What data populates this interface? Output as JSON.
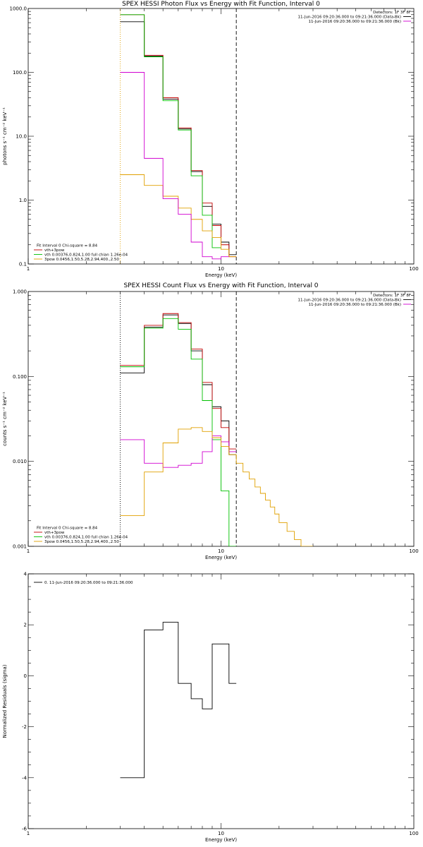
{
  "chart_data": [
    {
      "type": "line",
      "title": "SPEX HESSI Photon Flux vs Energy with Fit Function, Interval 0",
      "xlabel": "Energy (keV)",
      "ylabel": "photons s⁻¹ cm⁻² keV⁻¹",
      "xlim": [
        1,
        100
      ],
      "ylim": [
        0.1,
        1000
      ],
      "xscale": "log",
      "yscale": "log",
      "xticks": [
        {
          "v": 1,
          "label": "1"
        },
        {
          "v": 10,
          "label": "10"
        },
        {
          "v": 100,
          "label": "100"
        }
      ],
      "yticks": [
        {
          "v": 0.1,
          "label": "0.1"
        },
        {
          "v": 1,
          "label": "1.0"
        },
        {
          "v": 10,
          "label": "10.0"
        },
        {
          "v": 100,
          "label": "100.0"
        },
        {
          "v": 1000,
          "label": "1000.0"
        }
      ],
      "vlines": [
        {
          "x": 3,
          "style": "dotted",
          "color": "#e0a000"
        },
        {
          "x": 12,
          "style": "dashed",
          "color": "#000000"
        }
      ],
      "header": [
        {
          "text": "Detectors: 1F 3F 8F",
          "color": "#000000",
          "line": false
        },
        {
          "text": "11-Jun-2016 09:20:36.000 to 09:21:36.000 (Data-Bk)",
          "color": "#000000",
          "line": true
        },
        {
          "text": "11-Jun-2016 09:20:36.000 to 09:21:36.000 (Bk)",
          "color": "#d000d0",
          "line": true
        }
      ],
      "legend_position": "bottom-left",
      "legend": [
        {
          "text": "Fit Interval 0   Chi-square = 8.84",
          "color": "#000000",
          "line": false
        },
        {
          "text": "vth+3pow",
          "color": "#c00000",
          "line": true
        },
        {
          "text": "vth 0.00376,0.824,1.00  full chian 1.26e-04",
          "color": "#00c000",
          "line": true
        },
        {
          "text": "3pow 0.0456,1.50,5.28,2.94,400.,2.50",
          "color": "#e0a000",
          "line": true
        }
      ],
      "bin_edges": [
        3,
        4,
        5,
        6,
        7,
        8,
        9,
        10,
        11,
        12
      ],
      "series": [
        {
          "name": "Data-Bk",
          "color": "#000000",
          "values": [
            620,
            180,
            38,
            13,
            2.8,
            0.8,
            0.42,
            0.22,
            0.14
          ]
        },
        {
          "name": "vth+3pow",
          "color": "#c00000",
          "values": [
            800,
            185,
            40,
            13.5,
            2.9,
            0.9,
            0.4,
            0.2,
            0.13
          ]
        },
        {
          "name": "vth",
          "color": "#00c000",
          "values": [
            800,
            175,
            36,
            12.5,
            2.4,
            0.58,
            0.18
          ]
        },
        {
          "name": "3pow",
          "color": "#e0a000",
          "values": [
            2.5,
            1.7,
            1.15,
            0.75,
            0.5,
            0.33,
            0.26,
            0.17,
            0.13
          ]
        },
        {
          "name": "Bk",
          "color": "#d000d0",
          "values": [
            100,
            4.5,
            1.05,
            0.6,
            0.22,
            0.13,
            0.12,
            0.13
          ]
        }
      ]
    },
    {
      "type": "line",
      "title": "SPEX HESSI Count Flux vs Energy with Fit Function, Interval 0",
      "xlabel": "Energy (keV)",
      "ylabel": "counts s⁻¹ cm⁻² keV⁻¹",
      "xlim": [
        1,
        100
      ],
      "ylim": [
        0.001,
        1
      ],
      "xscale": "log",
      "yscale": "log",
      "xticks": [
        {
          "v": 1,
          "label": "1"
        },
        {
          "v": 10,
          "label": "10"
        },
        {
          "v": 100,
          "label": "100"
        }
      ],
      "yticks": [
        {
          "v": 0.001,
          "label": "0.001"
        },
        {
          "v": 0.01,
          "label": "0.010"
        },
        {
          "v": 0.1,
          "label": "0.100"
        },
        {
          "v": 1,
          "label": "1.000"
        }
      ],
      "vlines": [
        {
          "x": 3,
          "style": "dotted",
          "color": "#000000"
        },
        {
          "x": 12,
          "style": "dashed",
          "color": "#000000"
        }
      ],
      "header": [
        {
          "text": "Detectors: 1F 3F 8F",
          "color": "#000000",
          "line": false
        },
        {
          "text": "11-Jun-2016 09:20:36.000 to 09:21:36.000 (Data-Bk)",
          "color": "#000000",
          "line": true
        },
        {
          "text": "11-Jun-2016 09:20:36.000 to 09:21:36.000 (Bk)",
          "color": "#d000d0",
          "line": true
        }
      ],
      "legend_position": "bottom-left",
      "legend": [
        {
          "text": "Fit Interval 0   Chi-square = 8.84",
          "color": "#000000",
          "line": false
        },
        {
          "text": "vth+3pow",
          "color": "#c00000",
          "line": true
        },
        {
          "text": "vth 0.00376,0.824,1.00  full chian 1.26e-04",
          "color": "#00c000",
          "line": true
        },
        {
          "text": "3pow 0.0456,1.50,5.28,2.94,400.,2.50",
          "color": "#e0a000",
          "line": true
        }
      ],
      "bin_edges": [
        3,
        4,
        5,
        6,
        7,
        8,
        9,
        10,
        11,
        12
      ],
      "series": [
        {
          "name": "Data-Bk",
          "color": "#000000",
          "values": [
            0.11,
            0.38,
            0.53,
            0.42,
            0.2,
            0.08,
            0.044,
            0.03,
            0.012
          ]
        },
        {
          "name": "vth+3pow",
          "color": "#c00000",
          "values": [
            0.135,
            0.4,
            0.55,
            0.43,
            0.21,
            0.085,
            0.042,
            0.025,
            0.014
          ]
        },
        {
          "name": "vth",
          "color": "#00c000",
          "values": [
            0.13,
            0.37,
            0.48,
            0.36,
            0.16,
            0.052,
            0.018,
            0.0045,
            0.001
          ]
        },
        {
          "name": "Bk",
          "color": "#d000d0",
          "values": [
            0.018,
            0.0095,
            0.0085,
            0.009,
            0.0095,
            0.013,
            0.02,
            0.017,
            0.013
          ]
        },
        {
          "name": "3pow",
          "color": "#e0a000",
          "edges": [
            3,
            4,
            5,
            6,
            7,
            8,
            9,
            10,
            11,
            12,
            13,
            14,
            15,
            16,
            17,
            18,
            19,
            20,
            22,
            24,
            26,
            28,
            30
          ],
          "values": [
            0.0023,
            0.0075,
            0.0165,
            0.024,
            0.025,
            0.0225,
            0.019,
            0.015,
            0.012,
            0.0095,
            0.0075,
            0.0062,
            0.005,
            0.0042,
            0.0035,
            0.0029,
            0.0024,
            0.0019,
            0.0015,
            0.0012,
            0.001,
            0.001
          ]
        }
      ]
    },
    {
      "type": "line",
      "title": "",
      "xlabel": "Energy (keV)",
      "ylabel": "Normalized Residuals (sigma)",
      "xlim": [
        1,
        100
      ],
      "ylim": [
        -6,
        4
      ],
      "xscale": "log",
      "yscale": "linear",
      "xticks": [
        {
          "v": 1,
          "label": "1"
        },
        {
          "v": 10,
          "label": "10"
        },
        {
          "v": 100,
          "label": "100"
        }
      ],
      "yticks": [
        {
          "v": -6,
          "label": "-6"
        },
        {
          "v": -4,
          "label": "-4"
        },
        {
          "v": -2,
          "label": "-2"
        },
        {
          "v": 0,
          "label": "0"
        },
        {
          "v": 2,
          "label": "2"
        },
        {
          "v": 4,
          "label": "4"
        }
      ],
      "vlines": [],
      "header": [],
      "legend_position": "top-left",
      "legend": [
        {
          "text": "0. 11-Jun-2016 09:20:36.000 to 09:21:36.000",
          "color": "#000000",
          "line": true
        }
      ],
      "bin_edges": [
        3,
        4,
        5,
        6,
        7,
        8,
        9,
        10,
        11,
        12
      ],
      "series": [
        {
          "name": "",
          "color": "#000000",
          "values": [
            -4,
            1.8,
            2.1,
            -0.3,
            -0.9,
            -1.3,
            1.25,
            1.25,
            -0.3
          ]
        }
      ]
    }
  ]
}
